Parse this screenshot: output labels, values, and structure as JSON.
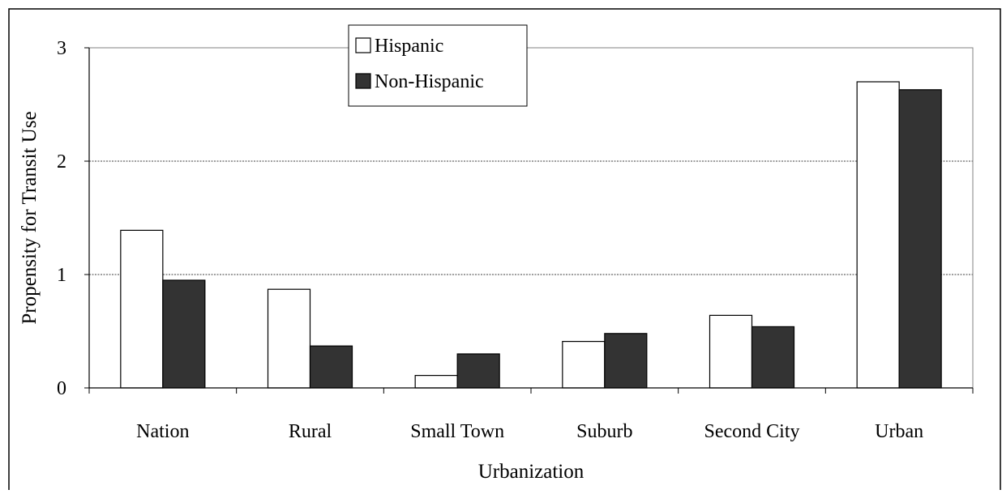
{
  "chart_data": {
    "type": "bar",
    "title": "",
    "xlabel": "Urbanization",
    "ylabel": "Propensity for Transit Use",
    "categories": [
      "Nation",
      "Rural",
      "Small Town",
      "Suburb",
      "Second City",
      "Urban"
    ],
    "series": [
      {
        "name": "Hispanic",
        "values": [
          1.39,
          0.87,
          0.11,
          0.41,
          0.64,
          2.7
        ],
        "color": "#ffffff"
      },
      {
        "name": "Non-Hispanic",
        "values": [
          0.95,
          0.37,
          0.3,
          0.48,
          0.54,
          2.63
        ],
        "color": "#333333"
      }
    ],
    "ylim": [
      0,
      3
    ],
    "yticks": [
      "0",
      "1",
      "2",
      "3"
    ],
    "grid": "horizontal dashed",
    "legend": "top-center"
  }
}
